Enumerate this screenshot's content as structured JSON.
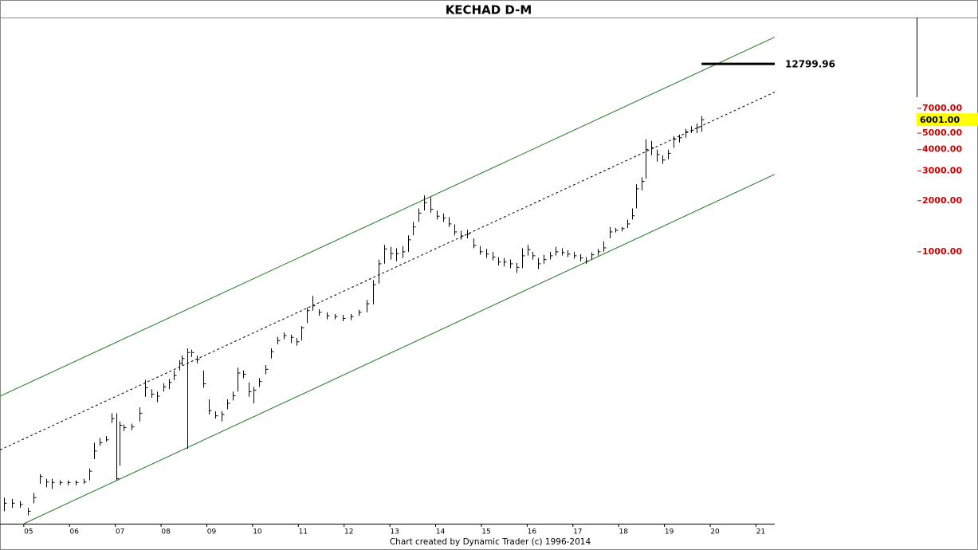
{
  "chart_data": {
    "type": "ohlc",
    "title": "KECHAD D-M",
    "footer": "Chart created by Dynamic Trader  (c) 1996-2014",
    "log_scale": true,
    "xlim": [
      2004.48,
      2021.41
    ],
    "xticks": [
      {
        "value": 2005,
        "label": "05"
      },
      {
        "value": 2006,
        "label": "06"
      },
      {
        "value": 2007,
        "label": "07"
      },
      {
        "value": 2008,
        "label": "08"
      },
      {
        "value": 2009,
        "label": "09"
      },
      {
        "value": 2010,
        "label": "10"
      },
      {
        "value": 2011,
        "label": "11"
      },
      {
        "value": 2012,
        "label": "12"
      },
      {
        "value": 2013,
        "label": "13"
      },
      {
        "value": 2014,
        "label": "14"
      },
      {
        "value": 2015,
        "label": "15"
      },
      {
        "value": 2016,
        "label": "16"
      },
      {
        "value": 2017,
        "label": "17"
      },
      {
        "value": 2018,
        "label": "18"
      },
      {
        "value": 2019,
        "label": "19"
      },
      {
        "value": 2020,
        "label": "20"
      },
      {
        "value": 2021,
        "label": "21"
      }
    ],
    "ylim": [
      25,
      24000
    ],
    "yticks": [
      {
        "value": 1000,
        "label": "1000.00"
      },
      {
        "value": 2000,
        "label": "2000.00"
      },
      {
        "value": 3000,
        "label": "3000.00"
      },
      {
        "value": 4000,
        "label": "4000.00"
      },
      {
        "value": 5000,
        "label": "5000.00"
      },
      {
        "value": 7000,
        "label": "7000.00"
      }
    ],
    "ytick_color": "#cc0000",
    "color": "#000000",
    "bars": {
      "x": [
        2004.56,
        2004.74,
        2004.91,
        2005.09,
        2005.21,
        2005.35,
        2005.49,
        2005.61,
        2005.78,
        2005.96,
        2006.13,
        2006.31,
        2006.43,
        2006.53,
        2006.66,
        2006.79,
        2006.92,
        2007.02,
        2007.09,
        2007.18,
        2007.35,
        2007.53,
        2007.65,
        2007.79,
        2007.91,
        2008.05,
        2008.17,
        2008.28,
        2008.4,
        2008.45,
        2008.57,
        2008.66,
        2008.78,
        2008.92,
        2009.04,
        2009.18,
        2009.32,
        2009.44,
        2009.56,
        2009.67,
        2009.79,
        2009.91,
        2010.02,
        2010.14,
        2010.28,
        2010.4,
        2010.54,
        2010.68,
        2010.84,
        2010.96,
        2011.06,
        2011.18,
        2011.31,
        2011.45,
        2011.62,
        2011.79,
        2011.97,
        2012.14,
        2012.32,
        2012.49,
        2012.63,
        2012.75,
        2012.87,
        2013.01,
        2013.14,
        2013.28,
        2013.4,
        2013.5,
        2013.62,
        2013.75,
        2013.89,
        2014.02,
        2014.16,
        2014.29,
        2014.41,
        2014.55,
        2014.69,
        2014.83,
        2014.97,
        2015.1,
        2015.24,
        2015.37,
        2015.49,
        2015.63,
        2015.77,
        2015.89,
        2016.01,
        2016.11,
        2016.24,
        2016.36,
        2016.5,
        2016.62,
        2016.76,
        2016.88,
        2017.02,
        2017.16,
        2017.28,
        2017.4,
        2017.54,
        2017.67,
        2017.8,
        2017.93,
        2018.07,
        2018.19,
        2018.29,
        2018.38,
        2018.5,
        2018.59,
        2018.71,
        2018.83,
        2018.95,
        2019.08,
        2019.2,
        2019.32,
        2019.46,
        2019.58,
        2019.7,
        2019.81
      ],
      "high": [
        35.6,
        35,
        34,
        31,
        38,
        49,
        46,
        46,
        45,
        45,
        45,
        46,
        53,
        75,
        80,
        82,
        112,
        112,
        100,
        96,
        97,
        121,
        176,
        155,
        150,
        168,
        178,
        200,
        230,
        245,
        270,
        265,
        245,
        200,
        135,
        115,
        115,
        135,
        150,
        208,
        200,
        170,
        160,
        180,
        215,
        270,
        315,
        335,
        325,
        310,
        365,
        470,
        550,
        460,
        440,
        430,
        425,
        430,
        455,
        520,
        680,
        900,
        1100,
        1070,
        1050,
        1080,
        1250,
        1500,
        1800,
        2150,
        2100,
        1750,
        1680,
        1600,
        1450,
        1330,
        1350,
        1200,
        1080,
        1040,
        1000,
        930,
        920,
        900,
        860,
        1050,
        1100,
        1000,
        920,
        960,
        1000,
        1070,
        1050,
        1020,
        1000,
        970,
        930,
        990,
        1040,
        1150,
        1400,
        1380,
        1400,
        1550,
        1800,
        2500,
        2750,
        4600,
        4500,
        4000,
        3700,
        4000,
        4800,
        4900,
        5300,
        5500,
        5700,
        6300
      ],
      "low": [
        29.6,
        31,
        31,
        28,
        33,
        43,
        41,
        40,
        42,
        42,
        42,
        43,
        45,
        60,
        72,
        76,
        98,
        45,
        55,
        88,
        89,
        100,
        140,
        138,
        130,
        150,
        155,
        175,
        200,
        215,
        69,
        240,
        220,
        158,
        110,
        104,
        100,
        118,
        133,
        150,
        180,
        140,
        128,
        160,
        190,
        235,
        285,
        305,
        290,
        280,
        300,
        380,
        450,
        420,
        400,
        400,
        390,
        395,
        420,
        440,
        490,
        650,
        850,
        900,
        880,
        920,
        1000,
        1250,
        1500,
        1750,
        1700,
        1550,
        1500,
        1400,
        1250,
        1180,
        1200,
        1050,
        960,
        920,
        890,
        830,
        820,
        800,
        750,
        800,
        950,
        900,
        790,
        850,
        900,
        950,
        950,
        930,
        910,
        880,
        850,
        900,
        950,
        1000,
        1200,
        1300,
        1320,
        1380,
        1550,
        1800,
        2300,
        2700,
        3700,
        3400,
        3300,
        3500,
        4100,
        4400,
        4700,
        5000,
        5000,
        5100
      ],
      "close": [
        33,
        33,
        32.5,
        29.6,
        35.6,
        47.5,
        44,
        43.7,
        43.7,
        43.7,
        43.7,
        44,
        51,
        67,
        75,
        78,
        104,
        46,
        95,
        92,
        93,
        112,
        158,
        145,
        141,
        160,
        170,
        187,
        220,
        235,
        255,
        255,
        232,
        167,
        116,
        108,
        110,
        128,
        142,
        193,
        190,
        150,
        153,
        172,
        203,
        258,
        300,
        321,
        313,
        295,
        357,
        450,
        480,
        440,
        420,
        415,
        405,
        415,
        440,
        494,
        640,
        850,
        1040,
        975,
        975,
        1000,
        1176,
        1400,
        1690,
        1950,
        1780,
        1620,
        1580,
        1460,
        1310,
        1240,
        1270,
        1090,
        1000,
        970,
        930,
        870,
        870,
        850,
        810,
        947,
        1030,
        947,
        850,
        900,
        947,
        1000,
        990,
        970,
        947,
        920,
        880,
        960,
        1000,
        1055,
        1310,
        1340,
        1370,
        1460,
        1630,
        2350,
        2600,
        4000,
        4100,
        3750,
        3473,
        3800,
        4600,
        4700,
        5100,
        5200,
        5400,
        6001
      ]
    },
    "last_price": {
      "value": 6001,
      "label": "6001.00",
      "background": "#ffff00"
    },
    "level": {
      "value": 12799.96,
      "x": [
        2019.81,
        2021.41
      ],
      "color": "#000000"
    },
    "channels": [
      {
        "x": [
          2004.48,
          2021.41
        ],
        "y": [
          141,
          18400
        ],
        "color": "#1f7a1f",
        "dashed": false
      },
      {
        "x": [
          2004.48,
          2021.41
        ],
        "y": [
          68,
          8730
        ],
        "color": "#000000",
        "dashed": true
      },
      {
        "x": [
          2005.0,
          2021.41
        ],
        "y": [
          25,
          2860
        ],
        "color": "#1f7a1f",
        "dashed": false
      }
    ]
  }
}
